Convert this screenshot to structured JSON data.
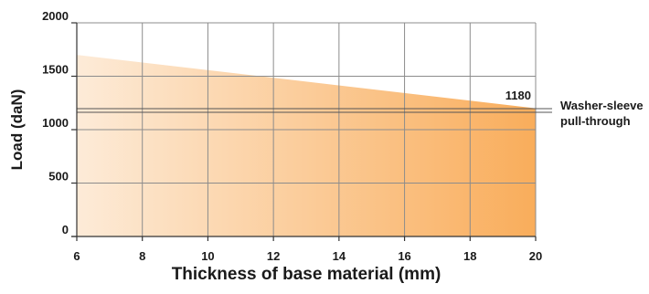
{
  "chart_data": {
    "type": "area",
    "title": "",
    "xlabel": "Thickness of base material  (mm)",
    "ylabel": "Load (daN)",
    "xlim": [
      6,
      20
    ],
    "ylim": [
      0,
      2000
    ],
    "x_ticks": [
      6,
      8,
      10,
      12,
      14,
      16,
      18,
      20
    ],
    "y_ticks": [
      0,
      500,
      1000,
      1500,
      2000
    ],
    "grid": true,
    "series": [
      {
        "x": [
          6,
          20
        ],
        "values": [
          1700,
          1200
        ],
        "fill_gradient": [
          "#fdebd8",
          "#f9ad5b"
        ]
      }
    ],
    "reference_lines": [
      {
        "y": 1180,
        "value_label": "1180",
        "name": "Washer-sleeve pull-through"
      }
    ]
  }
}
